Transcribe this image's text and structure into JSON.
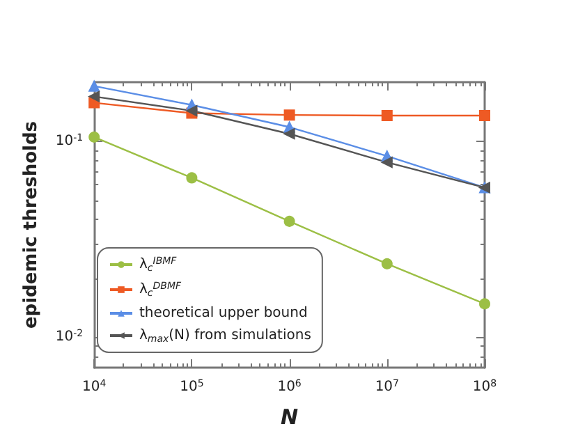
{
  "chart_data": {
    "type": "line",
    "xlabel": "N",
    "ylabel": "epidemic thresholds",
    "log": "xy",
    "grid": false,
    "legend": "bottom left",
    "x": [
      10000,
      100000,
      1000000,
      10000000,
      100000000
    ],
    "xlim": [
      10000,
      100000000
    ],
    "xticks": [
      {
        "value": 10000,
        "label": "10$^{4}$"
      },
      {
        "value": 100000,
        "label": "10$^{5}$"
      },
      {
        "value": 1000000,
        "label": "10$^{6}$"
      },
      {
        "value": 10000000,
        "label": "10$^{7}$"
      },
      {
        "value": 100000000,
        "label": "10$^{8}$"
      }
    ],
    "ylim": [
      0.007,
      0.2
    ],
    "yticks": [
      {
        "value": 0.01,
        "label": "10$^{-2}$"
      },
      {
        "value": 0.1,
        "label": "10$^{-1}$"
      }
    ],
    "series": [
      {
        "name": "λ$_{c}$$^{IBMF}$",
        "color": "#9cbf45",
        "marker": "circle",
        "values": [
          0.105,
          0.065,
          0.039,
          0.0237,
          0.0148
        ]
      },
      {
        "name": "λ$_{c}$$^{DBMF}$",
        "color": "#ee5a24",
        "marker": "square",
        "values": [
          0.157,
          0.139,
          0.136,
          0.135,
          0.135
        ]
      },
      {
        "name": "theoretical upper bound",
        "color": "#5b8ee6",
        "marker": "triangle",
        "values": [
          0.191,
          0.153,
          0.118,
          0.084,
          0.058
        ]
      },
      {
        "name": "λ$_{max}$(N) from simulations",
        "color": "#555555",
        "marker": "triangle-left",
        "values": [
          0.169,
          0.143,
          0.109,
          0.078,
          0.058
        ]
      }
    ]
  }
}
